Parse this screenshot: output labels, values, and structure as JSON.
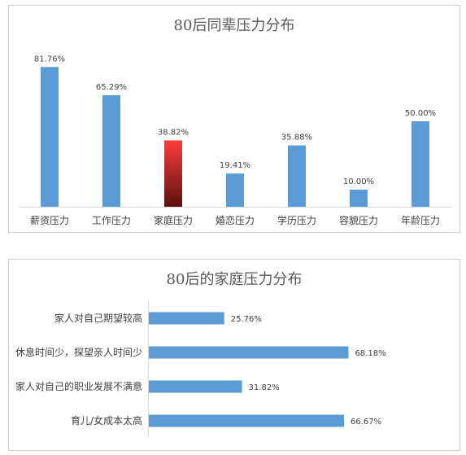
{
  "chart_data": [
    {
      "type": "bar",
      "title": "80后同辈压力分布",
      "categories": [
        "薪资压力",
        "工作压力",
        "家庭压力",
        "婚恋压力",
        "学历压力",
        "容貌压力",
        "年龄压力"
      ],
      "values": [
        81.76,
        65.29,
        38.82,
        19.41,
        35.88,
        10.0,
        50.0
      ],
      "data_labels": [
        "81.76%",
        "65.29%",
        "38.82%",
        "19.41%",
        "35.88%",
        "10.00%",
        "50.00%"
      ],
      "highlight_index": 2,
      "ylim": [
        0,
        100
      ],
      "grid": false,
      "colors": {
        "bar": "#5b9bd5",
        "highlight_top": "#ff3b3b",
        "highlight_bottom": "#5a1010"
      }
    },
    {
      "type": "bar",
      "orientation": "horizontal",
      "title": "80后的家庭压力分布",
      "categories": [
        "家人对自己期望较高",
        "休息时间少，探望亲人时间少",
        "家人对自己的职业发展不满意",
        "育儿/女成本太高"
      ],
      "values": [
        25.76,
        68.18,
        31.82,
        66.67
      ],
      "data_labels": [
        "25.76%",
        "68.18%",
        "31.82%",
        "66.67%"
      ],
      "xlim": [
        0,
        100
      ],
      "grid": false,
      "colors": {
        "bar": "#5b9bd5"
      }
    }
  ]
}
